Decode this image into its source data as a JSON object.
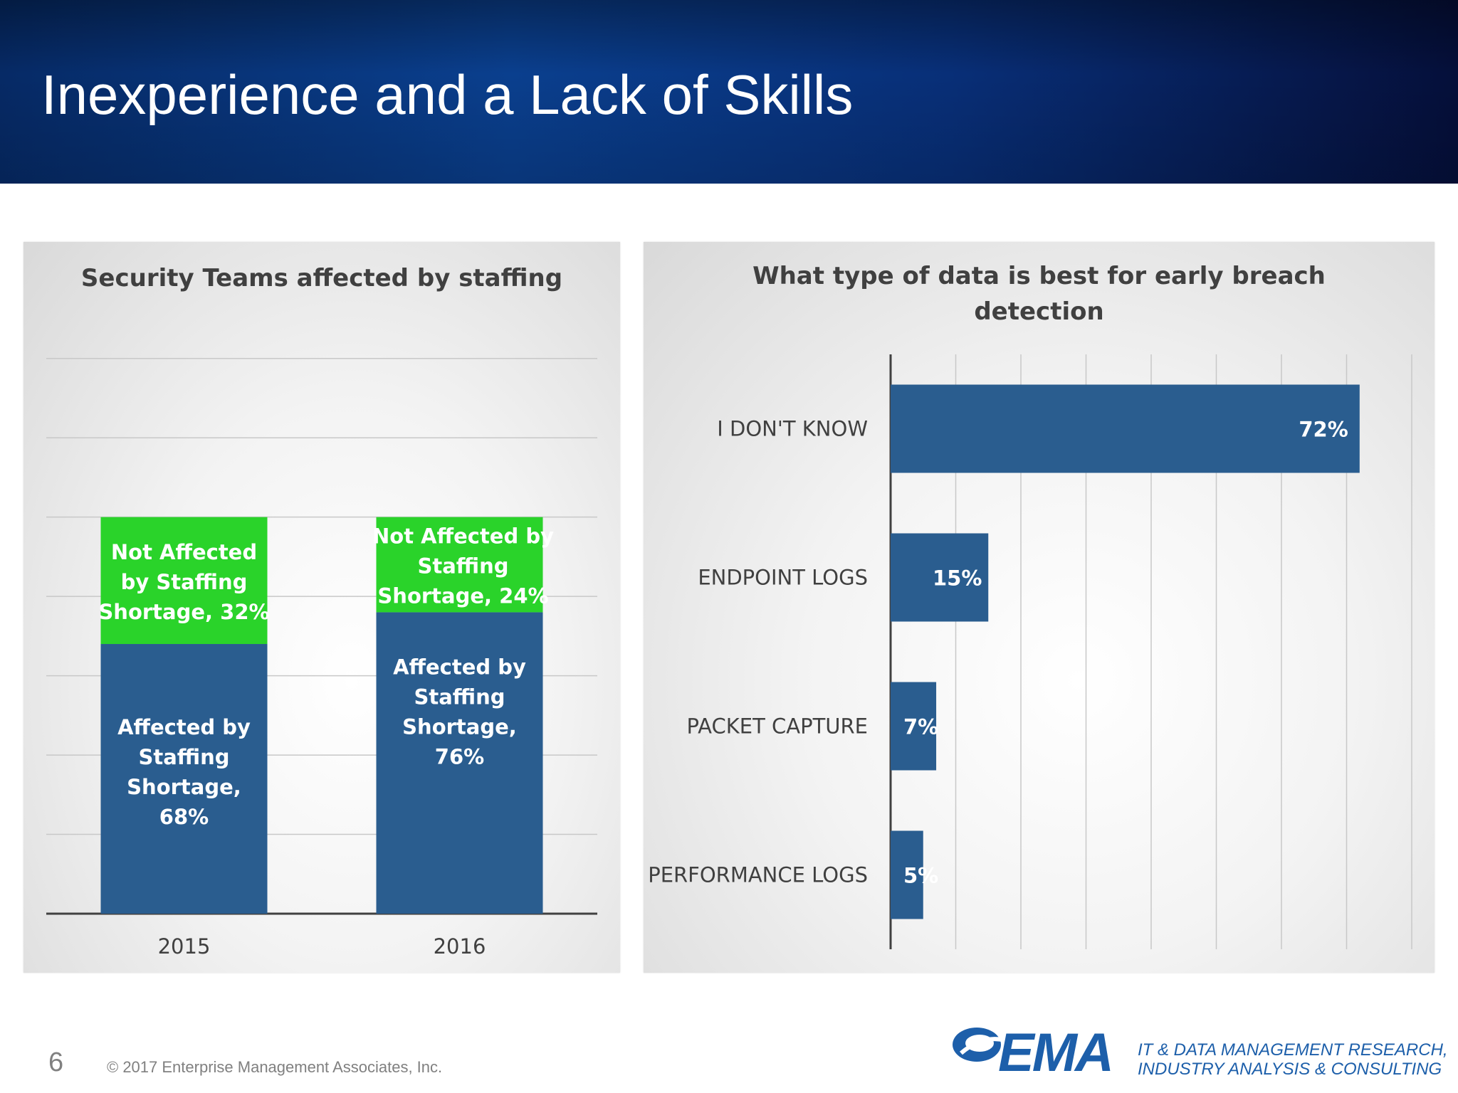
{
  "slide": {
    "title": "Inexperience and a Lack of Skills",
    "page_number": "6",
    "copyright": "© 2017 Enterprise Management Associates, Inc."
  },
  "logo": {
    "text": "EMA",
    "tagline_line1": "IT & DATA MANAGEMENT RESEARCH,",
    "tagline_line2": "INDUSTRY ANALYSIS & CONSULTING"
  },
  "colors": {
    "title_bar": "#0a3f8e",
    "affected": "#2a5d8f",
    "not_affected": "#2ad32a",
    "horizontal_bar": "#2a5d8f",
    "text_dark": "#404040",
    "logo_blue": "#1d5faa"
  },
  "chart_data": [
    {
      "type": "bar",
      "stacked": true,
      "orientation": "vertical",
      "title": "Security Teams affected by staffing",
      "categories": [
        "2015",
        "2016"
      ],
      "series": [
        {
          "name": "Affected by Staffing Shortage",
          "values": [
            68,
            76
          ],
          "labels": [
            [
              "Affected by",
              "Staffing",
              "Shortage,",
              "68%"
            ],
            [
              "Affected by",
              "Staffing",
              "Shortage,",
              "76%"
            ]
          ]
        },
        {
          "name": "Not Affected by Staffing Shortage",
          "values": [
            32,
            24
          ],
          "labels": [
            [
              "Not Affected",
              "by Staffing",
              "Shortage, 32%"
            ],
            [
              "Not Affected by",
              "Staffing",
              "Shortage, 24%"
            ]
          ]
        }
      ],
      "ylim": [
        0,
        150
      ],
      "grid": true,
      "legend": "none"
    },
    {
      "type": "bar",
      "orientation": "horizontal",
      "title_lines": [
        "What type of data is best for early breach",
        "detection"
      ],
      "categories": [
        "I DON'T KNOW",
        "ENDPOINT LOGS",
        "PACKET CAPTURE",
        "PERFORMANCE LOGS"
      ],
      "values": [
        72,
        15,
        7,
        5
      ],
      "value_labels": [
        "72%",
        "15%",
        "7%",
        "5%"
      ],
      "xlim": [
        0,
        80
      ],
      "grid": true,
      "legend": "none"
    }
  ]
}
